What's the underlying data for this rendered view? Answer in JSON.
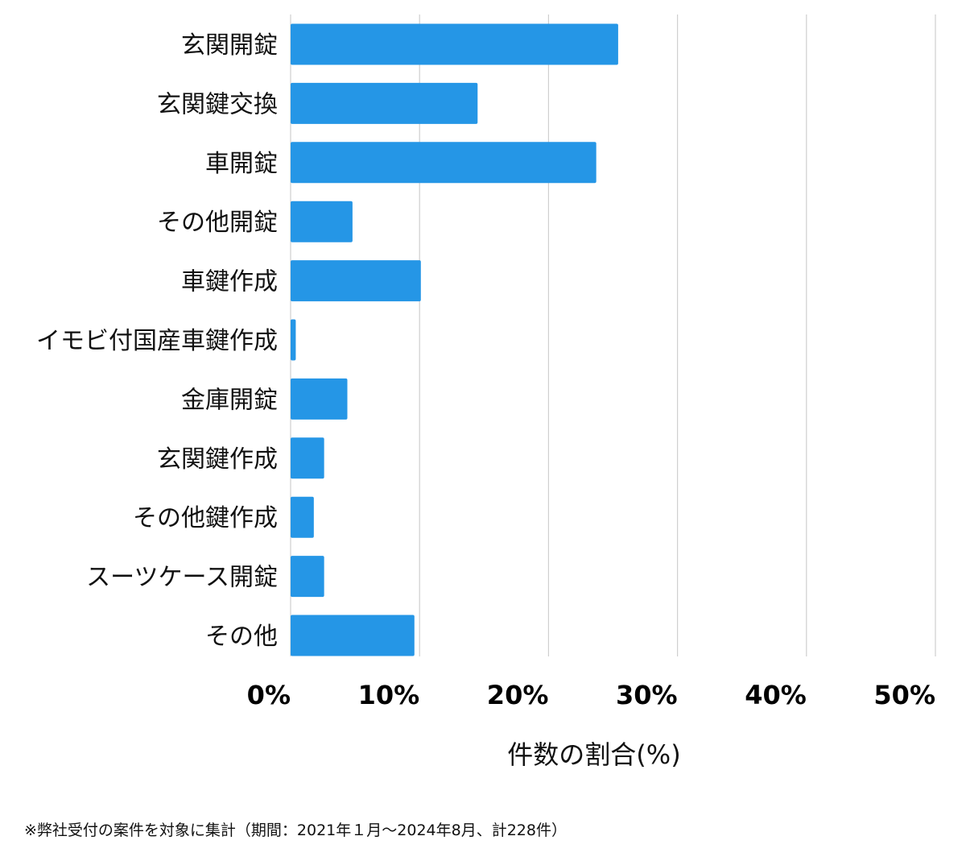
{
  "chart_data": {
    "type": "bar",
    "orientation": "horizontal",
    "categories": [
      "玄関開錠",
      "玄関鍵交換",
      "車開錠",
      "その他開錠",
      "車鍵作成",
      "イモビ付国産車鍵作成",
      "金庫開錠",
      "玄関鍵作成",
      "その他鍵作成",
      "スーツケース開錠",
      "その他"
    ],
    "values": [
      25.4,
      14.5,
      23.7,
      4.8,
      10.1,
      0.4,
      4.4,
      2.6,
      1.8,
      2.6,
      9.6
    ],
    "xlabel": "件数の割合(%)",
    "xlim": [
      0,
      50
    ],
    "xticks": [
      0,
      10,
      20,
      30,
      40,
      50
    ],
    "xtick_labels": [
      "0%",
      "10%",
      "20%",
      "30%",
      "40%",
      "50%"
    ],
    "grid": "vertical",
    "bar_color": "#2596e6",
    "gridline_color": "#cfcfcf"
  },
  "footnote": "※弊社受付の案件を対象に集計（期間：2021年１月〜2024年8月、計228件）"
}
